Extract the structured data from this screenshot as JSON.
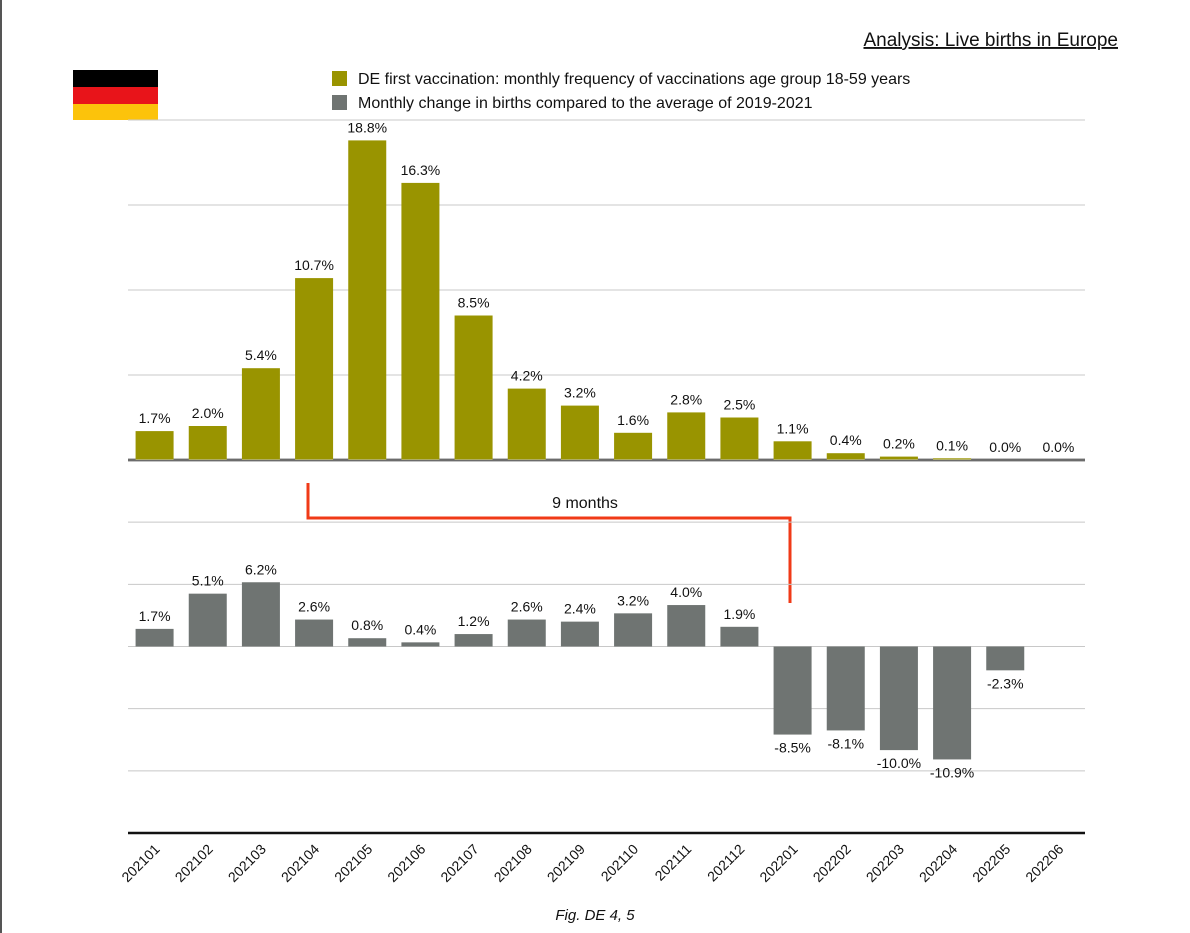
{
  "title": "Analysis: Live births in Europe",
  "caption": "Fig. DE 4, 5",
  "chart_data": [
    {
      "type": "bar",
      "series": [
        {
          "name": "DE first vaccination: monthly frequency of vaccinations age group 18-59 years",
          "color": "#999400",
          "values": [
            1.7,
            2.0,
            5.4,
            10.7,
            18.8,
            16.3,
            8.5,
            4.2,
            3.2,
            1.6,
            2.8,
            2.5,
            1.1,
            0.4,
            0.2,
            0.1,
            0.0,
            0.0
          ],
          "value_labels": [
            "1.7%",
            "2.0%",
            "5.4%",
            "10.7%",
            "18.8%",
            "16.3%",
            "8.5%",
            "4.2%",
            "3.2%",
            "1.6%",
            "2.8%",
            "2.5%",
            "1.1%",
            "0.4%",
            "0.2%",
            "0.1%",
            "0.0%",
            "0.0%"
          ]
        }
      ],
      "ylim": [
        0,
        20
      ],
      "yticks": [
        0,
        5,
        10,
        15,
        20
      ],
      "grid": true
    },
    {
      "type": "bar",
      "categories": [
        "202101",
        "202102",
        "202103",
        "202104",
        "202105",
        "202106",
        "202107",
        "202108",
        "202109",
        "202110",
        "202111",
        "202112",
        "202201",
        "202202",
        "202203",
        "202204",
        "202205",
        "202206"
      ],
      "series": [
        {
          "name": "Monthly change in births compared to the average of 2019-2021",
          "color": "#6f7472",
          "values": [
            1.7,
            5.1,
            6.2,
            2.6,
            0.8,
            0.4,
            1.2,
            2.6,
            2.4,
            3.2,
            4.0,
            1.9,
            -8.5,
            -8.1,
            -10.0,
            -10.9,
            -2.3,
            null
          ],
          "value_labels": [
            "1.7%",
            "5.1%",
            "6.2%",
            "2.6%",
            "0.8%",
            "0.4%",
            "1.2%",
            "2.6%",
            "2.4%",
            "3.2%",
            "4.0%",
            "1.9%",
            "-8.5%",
            "-8.1%",
            "-10.0%",
            "-10.9%",
            "-2.3%",
            null
          ]
        }
      ],
      "ylim": [
        -18,
        18
      ],
      "yticks": [
        -18,
        -12,
        -6,
        0,
        6,
        12,
        18
      ],
      "grid": true,
      "annotations": [
        "9 months"
      ]
    }
  ]
}
